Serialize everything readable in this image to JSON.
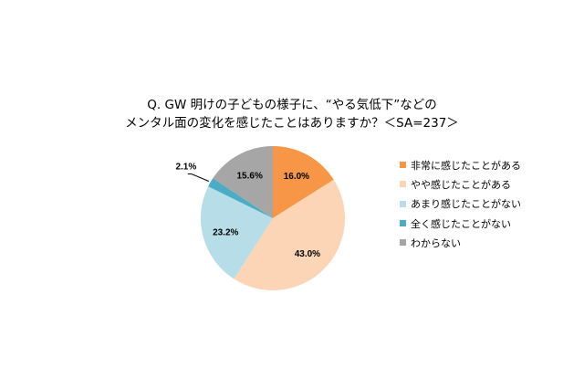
{
  "chart_data": {
    "type": "pie",
    "title_lines": [
      "Q. GW 明けの子どもの様子に、“やる気低下”などの",
      "メンタル面の変化を感じたことはありますか？＜SA=237＞"
    ],
    "categories": [
      "非常に感じたことがある",
      "やや感じたことがある",
      "あまり感じたことがない",
      "全く感じたことがない",
      "わからない"
    ],
    "values": [
      16.0,
      43.0,
      23.2,
      2.1,
      15.6
    ],
    "labels": [
      "16.0%",
      "43.0%",
      "23.2%",
      "2.1%",
      "15.6%"
    ],
    "colors": [
      "#F79646",
      "#FBD5B5",
      "#B7DEE8",
      "#4BACC6",
      "#A6A6A6"
    ],
    "legend_position": "right",
    "start": "top, clockwise"
  }
}
